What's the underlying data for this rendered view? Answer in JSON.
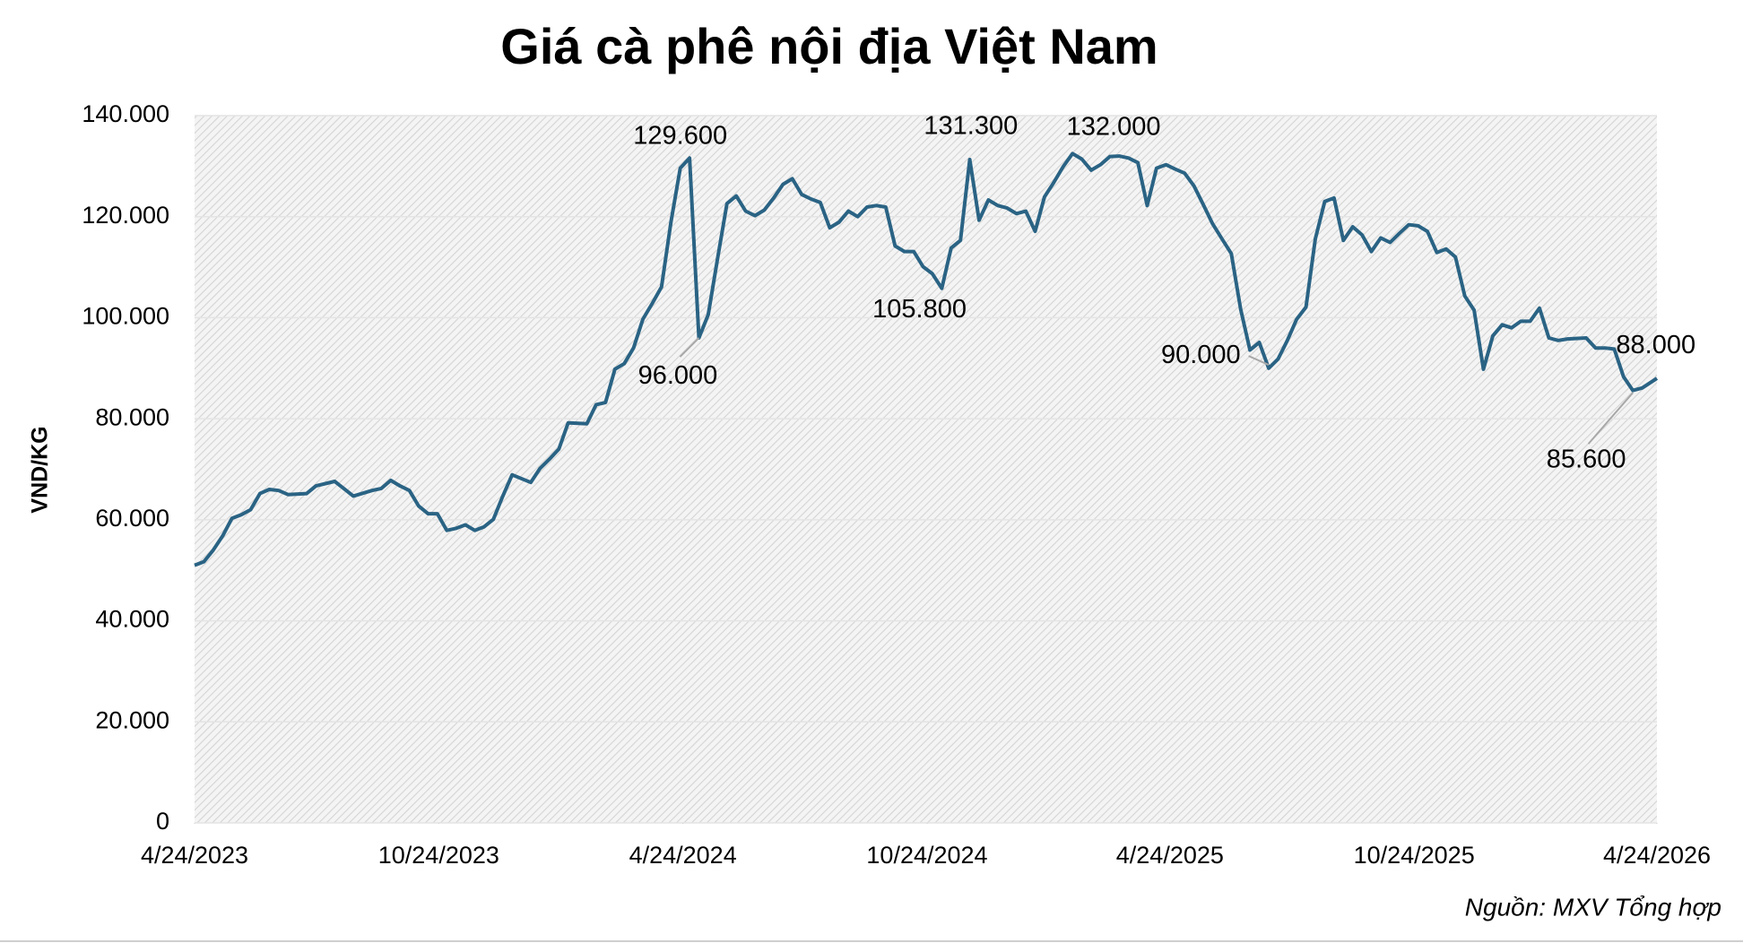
{
  "chart_data": {
    "type": "line",
    "title": "Giá cà phê nội địa Việt Nam",
    "y_label": "VND/KG",
    "source": "Nguồn: MXV Tổng hợp",
    "color": "#2a6384",
    "grid": true,
    "xlim": [
      "2023-04-24",
      "2026-04-24"
    ],
    "xticks": [
      {
        "value": "2023-04-24",
        "label": "4/24/2023"
      },
      {
        "value": "2023-10-24",
        "label": "10/24/2023"
      },
      {
        "value": "2024-04-24",
        "label": "4/24/2024"
      },
      {
        "value": "2024-10-24",
        "label": "10/24/2024"
      },
      {
        "value": "2025-04-24",
        "label": "4/24/2025"
      },
      {
        "value": "2025-10-24",
        "label": "10/24/2025"
      },
      {
        "value": "2026-04-24",
        "label": "4/24/2026"
      }
    ],
    "ylim": [
      0,
      140000
    ],
    "yticks": [
      0,
      {
        "value": 20000,
        "label": "20.000"
      },
      {
        "value": 40000,
        "label": "40.000"
      },
      {
        "value": 60000,
        "label": "60.000"
      },
      {
        "value": 80000,
        "label": "80.000"
      },
      {
        "value": 100000,
        "label": "100.000"
      },
      {
        "value": 120000,
        "label": "120.000"
      },
      {
        "value": 140000,
        "label": "140.000"
      }
    ],
    "x": [
      "2023-04-24",
      "2023-05-01",
      "2023-05-08",
      "2023-05-15",
      "2023-05-22",
      "2023-05-29",
      "2023-06-05",
      "2023-06-12",
      "2023-06-19",
      "2023-06-26",
      "2023-07-03",
      "2023-07-17",
      "2023-07-24",
      "2023-08-07",
      "2023-08-21",
      "2023-09-04",
      "2023-09-11",
      "2023-09-18",
      "2023-09-25",
      "2023-10-02",
      "2023-10-09",
      "2023-10-16",
      "2023-10-23",
      "2023-10-30",
      "2023-11-06",
      "2023-11-13",
      "2023-11-20",
      "2023-11-27",
      "2023-12-04",
      "2023-12-11",
      "2023-12-18",
      "2024-01-01",
      "2024-01-08",
      "2024-01-15",
      "2024-01-22",
      "2024-01-29",
      "2024-02-12",
      "2024-02-19",
      "2024-02-26",
      "2024-03-04",
      "2024-03-11",
      "2024-03-18",
      "2024-03-25",
      "2024-04-01",
      "2024-04-08",
      "2024-04-15",
      "2024-04-22",
      "2024-04-29",
      "2024-05-06",
      "2024-05-13",
      "2024-05-20",
      "2024-05-27",
      "2024-06-03",
      "2024-06-10",
      "2024-06-17",
      "2024-06-24",
      "2024-07-01",
      "2024-07-08",
      "2024-07-15",
      "2024-07-22",
      "2024-07-29",
      "2024-08-05",
      "2024-08-12",
      "2024-08-19",
      "2024-08-26",
      "2024-09-02",
      "2024-09-09",
      "2024-09-16",
      "2024-09-23",
      "2024-09-30",
      "2024-10-07",
      "2024-10-14",
      "2024-10-21",
      "2024-10-28",
      "2024-11-04",
      "2024-11-11",
      "2024-11-18",
      "2024-11-25",
      "2024-12-02",
      "2024-12-09",
      "2024-12-16",
      "2024-12-23",
      "2024-12-30",
      "2025-01-06",
      "2025-01-13",
      "2025-01-20",
      "2025-01-27",
      "2025-02-03",
      "2025-02-10",
      "2025-02-17",
      "2025-02-24",
      "2025-03-03",
      "2025-03-10",
      "2025-03-17",
      "2025-03-24",
      "2025-03-31",
      "2025-04-07",
      "2025-04-14",
      "2025-04-21",
      "2025-04-28",
      "2025-05-05",
      "2025-05-12",
      "2025-05-19",
      "2025-05-26",
      "2025-06-02",
      "2025-06-09",
      "2025-06-16",
      "2025-06-23",
      "2025-06-30",
      "2025-07-07",
      "2025-07-14",
      "2025-07-21",
      "2025-07-28",
      "2025-08-04",
      "2025-08-11",
      "2025-08-18",
      "2025-08-25",
      "2025-09-01",
      "2025-09-08",
      "2025-09-15",
      "2025-09-22",
      "2025-09-29",
      "2025-10-06",
      "2025-10-13",
      "2025-10-20",
      "2025-10-27",
      "2025-11-03",
      "2025-11-10",
      "2025-11-17",
      "2025-11-24",
      "2025-12-01",
      "2025-12-08",
      "2025-12-15",
      "2025-12-22",
      "2025-12-29",
      "2026-01-05",
      "2026-01-12",
      "2026-01-19",
      "2026-01-26",
      "2026-02-02",
      "2026-02-09",
      "2026-02-16",
      "2026-03-02",
      "2026-03-09",
      "2026-03-16",
      "2026-03-23",
      "2026-03-30",
      "2026-04-06",
      "2026-04-13",
      "2026-04-24"
    ],
    "values": [
      51000,
      51700,
      54000,
      56800,
      60300,
      61000,
      62000,
      65200,
      66000,
      65800,
      65000,
      65200,
      66700,
      67600,
      64700,
      65800,
      66200,
      67800,
      66700,
      65800,
      62700,
      61200,
      61200,
      57900,
      58300,
      59000,
      57900,
      58600,
      60100,
      64700,
      68900,
      67400,
      70200,
      72000,
      74000,
      79200,
      79000,
      82800,
      83200,
      89800,
      90900,
      94000,
      99700,
      102800,
      106100,
      118900,
      129600,
      131600,
      96000,
      100600,
      111800,
      122600,
      124100,
      121100,
      120200,
      121300,
      123700,
      126400,
      127500,
      124400,
      123500,
      122800,
      117800,
      118900,
      121100,
      120000,
      121900,
      122200,
      121900,
      114200,
      113100,
      113100,
      110100,
      108700,
      105800,
      113800,
      115300,
      131300,
      119300,
      123300,
      122200,
      121700,
      120600,
      121100,
      117100,
      123900,
      126800,
      129900,
      132500,
      131400,
      129200,
      130300,
      131900,
      132000,
      131600,
      130700,
      122200,
      129600,
      130300,
      129400,
      128600,
      126100,
      122400,
      118600,
      115600,
      112700,
      101700,
      93600,
      95100,
      90000,
      91800,
      95500,
      99700,
      102100,
      115600,
      123000,
      123700,
      115300,
      118000,
      116400,
      113100,
      115800,
      114900,
      116700,
      118400,
      118200,
      117100,
      112900,
      113600,
      112000,
      104300,
      101500,
      89800,
      96400,
      98600,
      98000,
      99300,
      99300,
      101900,
      96000,
      95500,
      95800,
      96000,
      94000,
      94000,
      93800,
      88300,
      85600,
      86100,
      88000
    ],
    "annotations": [
      {
        "x": "2024-04-22",
        "y": 129600,
        "label": "129.600"
      },
      {
        "x": "2024-05-06",
        "y": 96000,
        "label": "96.000"
      },
      {
        "x": "2024-11-04",
        "y": 105800,
        "label": "105.800"
      },
      {
        "x": "2024-11-25",
        "y": 131300,
        "label": "131.300"
      },
      {
        "x": "2025-03-17",
        "y": 132000,
        "label": "132.000"
      },
      {
        "x": "2025-07-07",
        "y": 90000,
        "label": "90.000"
      },
      {
        "x": "2026-04-24",
        "y": 88000,
        "label": "88.000"
      },
      {
        "x": "2026-04-06",
        "y": 85600,
        "label": "85.600"
      }
    ]
  }
}
